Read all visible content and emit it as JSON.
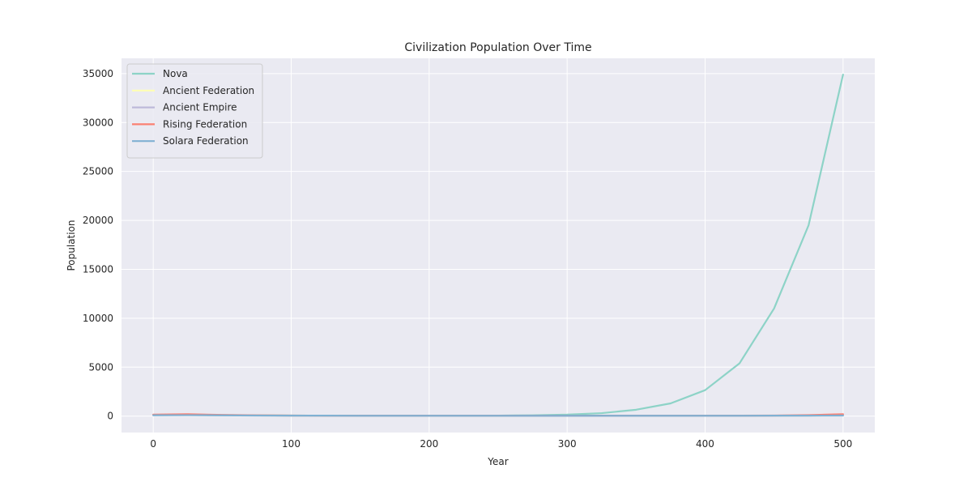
{
  "chart_data": {
    "type": "line",
    "title": "Civilization Population Over Time",
    "xlabel": "Year",
    "ylabel": "Population",
    "xlim": [
      -23,
      523
    ],
    "ylim": [
      -1680,
      36560
    ],
    "xticks": [
      0,
      100,
      200,
      300,
      400,
      500
    ],
    "yticks": [
      0,
      5000,
      10000,
      15000,
      20000,
      25000,
      30000,
      35000
    ],
    "grid": true,
    "background": "#EAEAF2",
    "legend": "top-left",
    "x": [
      0,
      25,
      50,
      75,
      100,
      125,
      150,
      175,
      200,
      225,
      250,
      275,
      300,
      325,
      350,
      375,
      400,
      425,
      450,
      475,
      500
    ],
    "series": [
      {
        "name": "Nova",
        "color": "#8DD3C7",
        "values": [
          100,
          120,
          100,
          80,
          60,
          50,
          45,
          45,
          45,
          50,
          55,
          80,
          150,
          300,
          650,
          1300,
          2650,
          5400,
          11000,
          19500,
          34900
        ]
      },
      {
        "name": "Ancient Federation",
        "color": "#FFFFB3",
        "values": [
          110,
          115,
          90,
          70,
          55,
          50,
          45,
          45,
          45,
          45,
          45,
          45,
          45,
          45,
          45,
          45,
          45,
          45,
          50,
          60,
          80
        ]
      },
      {
        "name": "Ancient Empire",
        "color": "#BEBADA",
        "values": [
          100,
          110,
          85,
          65,
          55,
          50,
          45,
          45,
          45,
          45,
          45,
          45,
          45,
          45,
          45,
          45,
          45,
          45,
          50,
          60,
          90
        ]
      },
      {
        "name": "Rising Federation",
        "color": "#FB8072",
        "values": [
          150,
          200,
          120,
          80,
          60,
          50,
          45,
          45,
          45,
          45,
          45,
          45,
          45,
          45,
          45,
          45,
          45,
          45,
          60,
          100,
          200
        ]
      },
      {
        "name": "Solara Federation",
        "color": "#80B1D3",
        "values": [
          90,
          95,
          80,
          60,
          50,
          45,
          40,
          40,
          40,
          40,
          40,
          40,
          40,
          40,
          40,
          40,
          40,
          40,
          45,
          50,
          60
        ]
      }
    ]
  }
}
